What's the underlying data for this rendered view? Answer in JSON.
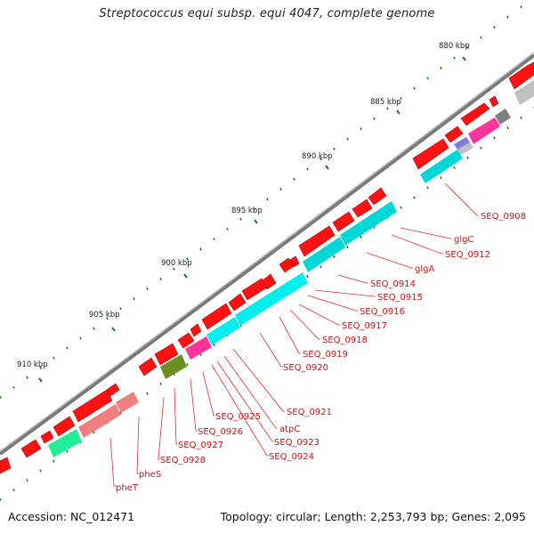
{
  "title": "Streptococcus equi subsp. equi 4047, complete genome",
  "accession_text": "Accession: NC_012471",
  "topology_text": "Topology: circular; Length: 2,253,793 bp; Genes: 2,095",
  "ticks": [
    "880 kbp",
    "885 kbp",
    "890 kbp",
    "895 kbp",
    "900 kbp",
    "905 kbp",
    "910 kbp"
  ],
  "gene_labels": [
    "SEQ_0908",
    "glgC",
    "SEQ_0912",
    "glgA",
    "SEQ_0914",
    "SEQ_0915",
    "SEQ_0916",
    "SEQ_0917",
    "SEQ_0918",
    "SEQ_0919",
    "SEQ_0920",
    "SEQ_0921",
    "atpC",
    "SEQ_0923",
    "SEQ_0924",
    "SEQ_0925",
    "SEQ_0926",
    "SEQ_0927",
    "SEQ_0928",
    "pheS",
    "pheT"
  ],
  "colors": {
    "backbone": "#7a7a7a",
    "gene_forward": "#ff0000",
    "gene_reverse": "#ff0000",
    "label_line": "#e03030",
    "label_text": "#cc1111",
    "tick_mark": "#1f7a1f",
    "tick_text": "#222222",
    "feature_cyan": "#00e5e5",
    "feature_pink": "#ff3399",
    "feature_salmon": "#f08080",
    "feature_green": "#22ee99",
    "feature_olive": "#6b8e23",
    "feature_grey": "#c0c0c0",
    "feature_dark": "#808080",
    "feature_purple": "#8877dd"
  }
}
